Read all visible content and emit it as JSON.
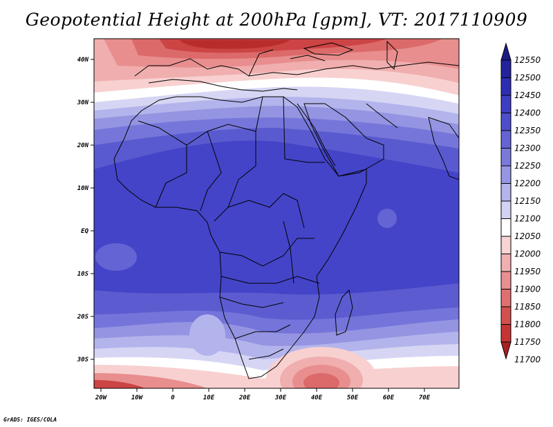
{
  "title": "Geopotential Height at 200hPa [gpm], VT: 2017110909",
  "credit": "GrADS: IGES/COLA",
  "lat_labels": [
    "40N",
    "30N",
    "20N",
    "10N",
    "EQ",
    "10S",
    "20S",
    "30S"
  ],
  "lon_labels": [
    "20W",
    "10W",
    "0",
    "10E",
    "20E",
    "30E",
    "40E",
    "50E",
    "60E",
    "70E"
  ],
  "colorbar": {
    "levels": [
      12550,
      12500,
      12450,
      12400,
      12350,
      12300,
      12250,
      12200,
      12150,
      12100,
      12050,
      12000,
      11950,
      11900,
      11850,
      11800,
      11750,
      11700
    ],
    "colors": [
      "#1c1c86",
      "#23239e",
      "#2d2db4",
      "#3d3dc4",
      "#4e4ecc",
      "#6464d4",
      "#7a7adc",
      "#9696e4",
      "#b4b4ec",
      "#d2d2f4",
      "#ffffff",
      "#f8d4d4",
      "#f0b0b0",
      "#e89090",
      "#e07070",
      "#d45050",
      "#c63434",
      "#a82020"
    ]
  }
}
